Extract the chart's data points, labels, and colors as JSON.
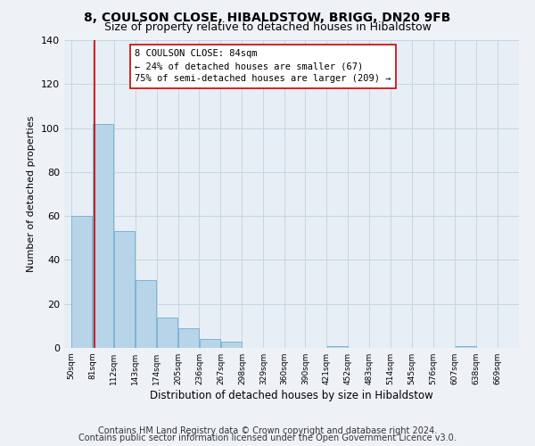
{
  "title": "8, COULSON CLOSE, HIBALDSTOW, BRIGG, DN20 9FB",
  "subtitle": "Size of property relative to detached houses in Hibaldstow",
  "xlabel": "Distribution of detached houses by size in Hibaldstow",
  "ylabel": "Number of detached properties",
  "bar_color": "#b8d4e8",
  "bar_edge_color": "#7ab5d4",
  "bar_left_edges": [
    50,
    81,
    112,
    143,
    174,
    205,
    236,
    267,
    298,
    329,
    360,
    390,
    421,
    452,
    483,
    514,
    545,
    576,
    607,
    638
  ],
  "bar_heights": [
    60,
    102,
    53,
    31,
    14,
    9,
    4,
    3,
    0,
    0,
    0,
    0,
    1,
    0,
    0,
    0,
    0,
    0,
    1,
    0
  ],
  "bin_width": 31,
  "x_tick_labels": [
    "50sqm",
    "81sqm",
    "112sqm",
    "143sqm",
    "174sqm",
    "205sqm",
    "236sqm",
    "267sqm",
    "298sqm",
    "329sqm",
    "360sqm",
    "390sqm",
    "421sqm",
    "452sqm",
    "483sqm",
    "514sqm",
    "545sqm",
    "576sqm",
    "607sqm",
    "638sqm",
    "669sqm"
  ],
  "x_tick_positions": [
    50,
    81,
    112,
    143,
    174,
    205,
    236,
    267,
    298,
    329,
    360,
    390,
    421,
    452,
    483,
    514,
    545,
    576,
    607,
    638,
    669
  ],
  "ylim": [
    0,
    140
  ],
  "xlim": [
    40,
    700
  ],
  "property_line_x": 84,
  "property_line_color": "#cc0000",
  "annotation_title": "8 COULSON CLOSE: 84sqm",
  "annotation_line1": "← 24% of detached houses are smaller (67)",
  "annotation_line2": "75% of semi-detached houses are larger (209) →",
  "annotation_box_color": "#ffffff",
  "annotation_box_edge_color": "#cc0000",
  "footer_line1": "Contains HM Land Registry data © Crown copyright and database right 2024.",
  "footer_line2": "Contains public sector information licensed under the Open Government Licence v3.0.",
  "background_color": "#eef2f7",
  "plot_background_color": "#e8eef5",
  "grid_color": "#c5d5e5",
  "title_fontsize": 10,
  "subtitle_fontsize": 9,
  "footer_fontsize": 7
}
